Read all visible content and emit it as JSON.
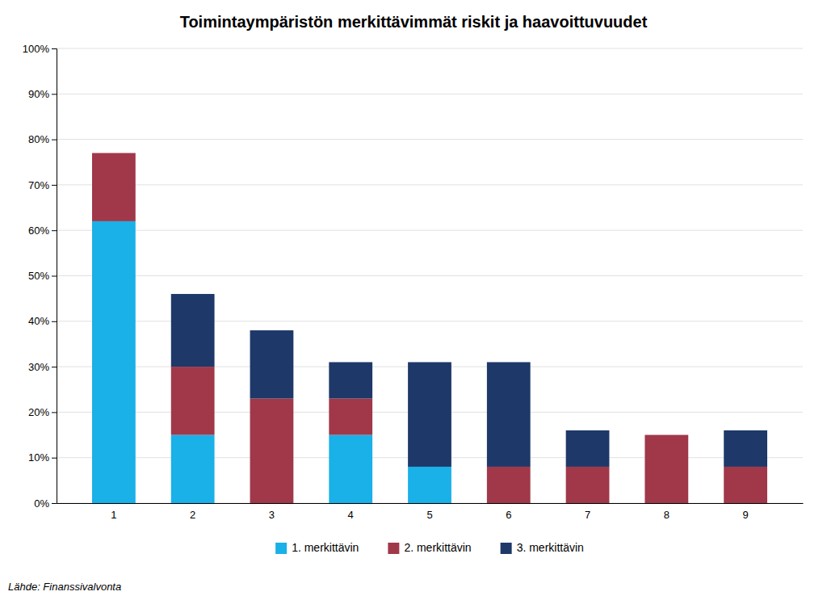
{
  "chart_data": {
    "type": "bar",
    "stacked": true,
    "title": "Toimintaympäristön merkittävimmät riskit ja haavoittuvuudet",
    "categories": [
      1,
      2,
      3,
      4,
      5,
      6,
      7,
      8,
      9
    ],
    "series": [
      {
        "name": "1. merkittävin",
        "color": "#1AB0E8",
        "values": [
          62,
          15,
          0,
          15,
          8,
          0,
          0,
          0,
          0
        ]
      },
      {
        "name": "2. merkittävin",
        "color": "#A0384A",
        "values": [
          15,
          15,
          23,
          8,
          0,
          8,
          8,
          15,
          8
        ]
      },
      {
        "name": "3. merkittävin",
        "color": "#1E3869",
        "values": [
          0,
          16,
          15,
          8,
          23,
          23,
          8,
          0,
          8
        ]
      }
    ],
    "ylim": [
      0,
      100
    ],
    "yticks": [
      {
        "value": 0,
        "label": "0%"
      },
      {
        "value": 10,
        "label": "10%"
      },
      {
        "value": 20,
        "label": "20%"
      },
      {
        "value": 30,
        "label": "30%"
      },
      {
        "value": 40,
        "label": "40%"
      },
      {
        "value": 50,
        "label": "50%"
      },
      {
        "value": 60,
        "label": "60%"
      },
      {
        "value": 70,
        "label": "70%"
      },
      {
        "value": 80,
        "label": "80%"
      },
      {
        "value": 90,
        "label": "90%"
      },
      {
        "value": 100,
        "label": "100%"
      }
    ],
    "grid": true,
    "legend": "bottom",
    "annotations": [
      "Lähde: Finanssivalvonta"
    ]
  }
}
